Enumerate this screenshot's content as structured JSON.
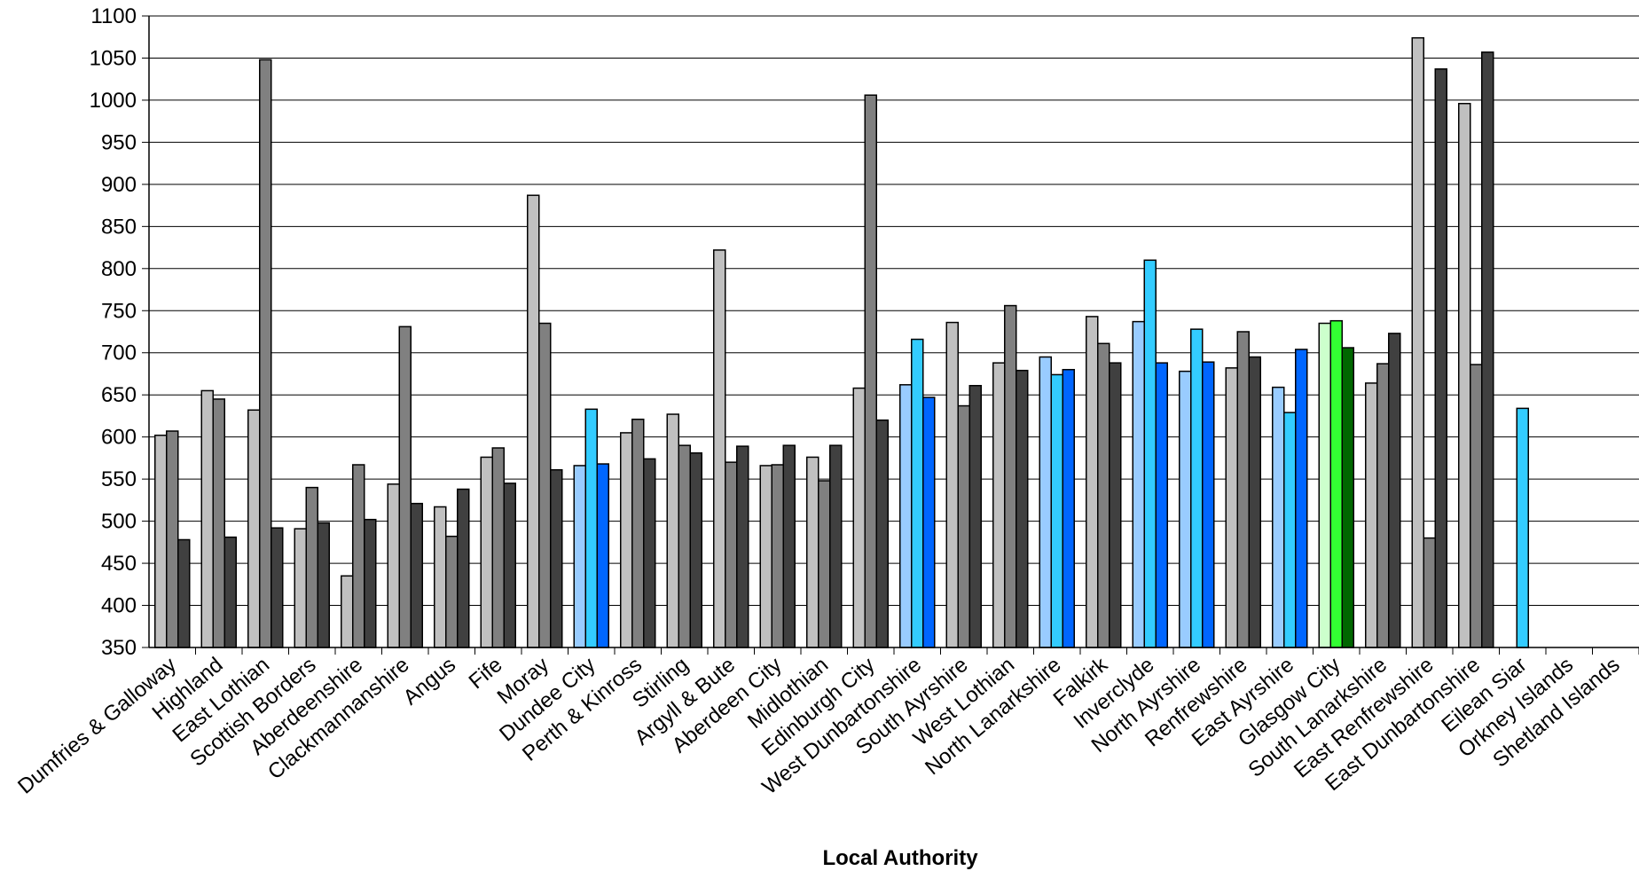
{
  "chart_data": {
    "type": "bar",
    "xlabel": "Local Authority",
    "ylabel": "",
    "ylim": [
      350,
      1100
    ],
    "yticks": [
      350,
      400,
      450,
      500,
      550,
      600,
      650,
      700,
      750,
      800,
      850,
      900,
      950,
      1000,
      1050,
      1100
    ],
    "grid": true,
    "categories": [
      "Dumfries & Galloway",
      "Highland",
      "East Lothian",
      "Scottish Borders",
      "Aberdeenshire",
      "Clackmannanshire",
      "Angus",
      "Fife",
      "Moray",
      "Dundee City",
      "Perth & Kinross",
      "Stirling",
      "Argyll & Bute",
      "Aberdeen City",
      "Midlothian",
      "Edinburgh City",
      "West Dunbartonshire",
      "South Ayrshire",
      "West Lothian",
      "North Lanarkshire",
      "Falkirk",
      "Inverclyde",
      "North Ayrshire",
      "Renfrewshire",
      "East Ayrshire",
      "Glasgow City",
      "South Lanarkshire",
      "East Renfrewshire",
      "East Dunbartonshire",
      "Eilean Siar",
      "Orkney Islands",
      "Shetland Islands"
    ],
    "series": [
      {
        "values": [
          602,
          655,
          632,
          491,
          435,
          544,
          517,
          576,
          887,
          566,
          605,
          627,
          822,
          566,
          576,
          658,
          662,
          736,
          688,
          695,
          743,
          737,
          678,
          682,
          659,
          735,
          664,
          1074,
          996,
          350,
          350,
          350
        ]
      },
      {
        "values": [
          607,
          645,
          1048,
          540,
          567,
          731,
          482,
          587,
          735,
          633,
          621,
          590,
          570,
          567,
          548,
          1006,
          716,
          637,
          756,
          674,
          711,
          810,
          728,
          725,
          629,
          738,
          687,
          480,
          686,
          634,
          350,
          350
        ]
      },
      {
        "values": [
          478,
          481,
          492,
          498,
          502,
          521,
          538,
          545,
          561,
          568,
          574,
          581,
          589,
          590,
          590,
          620,
          647,
          661,
          679,
          680,
          688,
          688,
          689,
          695,
          704,
          706,
          723,
          1037,
          1057,
          350,
          350,
          350
        ]
      }
    ],
    "colors": {
      "grey_series": [
        "#c0c0c0",
        "#808080",
        "#404040"
      ],
      "blue_series": [
        "#99ccff",
        "#33ccff",
        "#0066ff"
      ],
      "green_series": [
        "#ccffcc",
        "#33ff33",
        "#006600"
      ],
      "stroke": "#000000",
      "grid": "#000000"
    },
    "blue_categories": [
      "Dundee City",
      "West Dunbartonshire",
      "North Lanarkshire",
      "Inverclyde",
      "North Ayrshire",
      "East Ayrshire",
      "Eilean Siar"
    ],
    "green_categories": [
      "Glasgow City"
    ]
  }
}
